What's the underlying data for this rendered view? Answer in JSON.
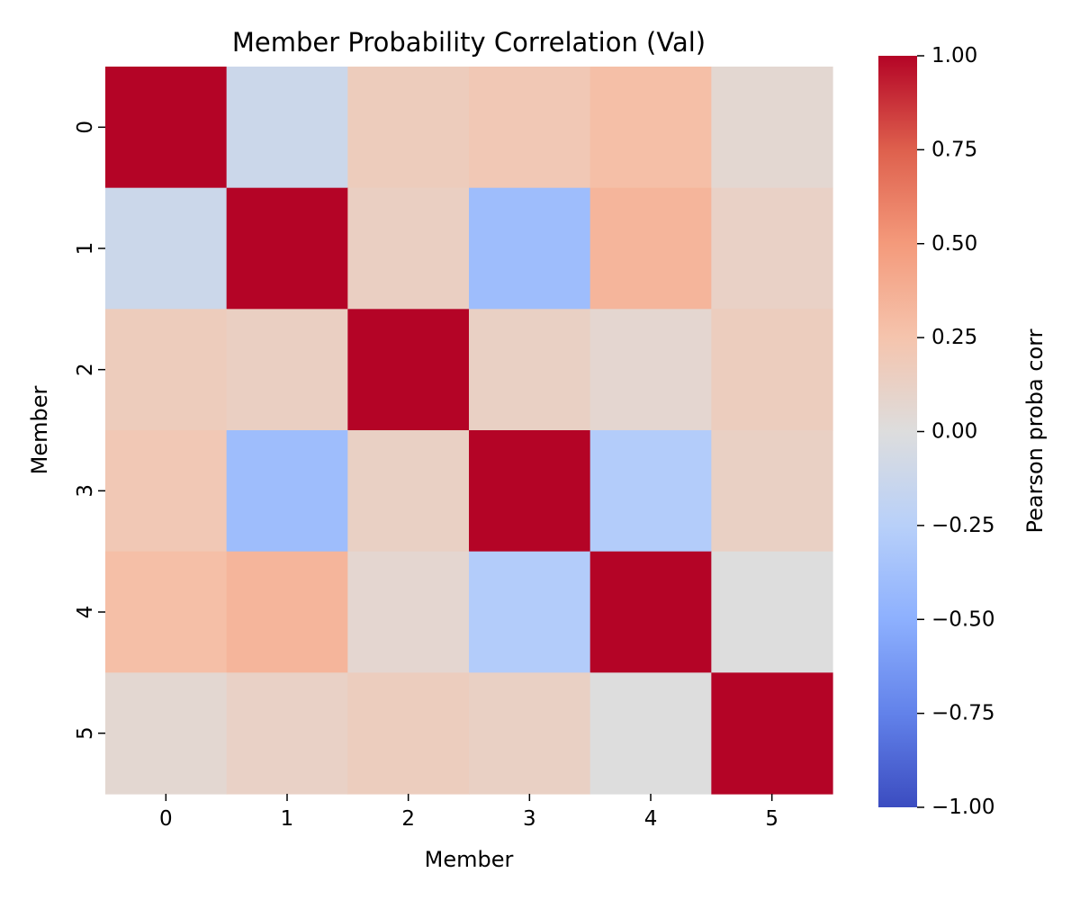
{
  "chart_data": {
    "type": "heatmap",
    "title": "Member Probability Correlation (Val)",
    "xlabel": "Member",
    "ylabel": "Member",
    "x_categories": [
      "0",
      "1",
      "2",
      "3",
      "4",
      "5"
    ],
    "y_categories": [
      "0",
      "1",
      "2",
      "3",
      "4",
      "5"
    ],
    "values": [
      [
        1.0,
        -0.12,
        0.17,
        0.21,
        0.28,
        0.06
      ],
      [
        -0.12,
        1.0,
        0.14,
        -0.4,
        0.34,
        0.12
      ],
      [
        0.17,
        0.14,
        1.0,
        0.13,
        0.07,
        0.16
      ],
      [
        0.21,
        -0.4,
        0.13,
        1.0,
        -0.28,
        0.13
      ],
      [
        0.28,
        0.34,
        0.07,
        -0.28,
        1.0,
        0.0
      ],
      [
        0.06,
        0.12,
        0.16,
        0.13,
        0.0,
        1.0
      ]
    ],
    "colormap": "coolwarm",
    "colorbar": {
      "label": "Pearson proba corr",
      "range": [
        -1.0,
        1.0
      ],
      "ticks": [
        1.0,
        0.75,
        0.5,
        0.25,
        0.0,
        -0.25,
        -0.5,
        -0.75,
        -1.0
      ],
      "tick_labels": [
        "1.00",
        "0.75",
        "0.50",
        "0.25",
        "0.00",
        "−0.25",
        "−0.50",
        "−0.75",
        "−1.00"
      ],
      "position": "right"
    },
    "colors": {
      "min": "#3b4cc0",
      "mid": "#dddddd",
      "max": "#b40426"
    },
    "grid": false
  }
}
